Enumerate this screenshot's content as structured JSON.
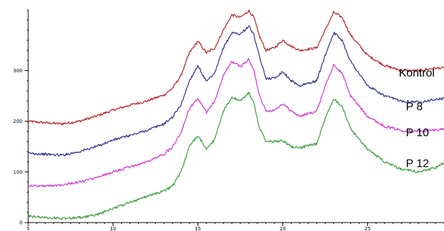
{
  "chart_data": {
    "type": "line",
    "title": "",
    "xlabel": "",
    "ylabel": "",
    "xlim": [
      5,
      29.5
    ],
    "ylim": [
      0,
      420
    ],
    "x_ticks": [
      5,
      10,
      15,
      20,
      25
    ],
    "y_ticks": [
      0,
      100,
      200,
      300
    ],
    "x_tick_labels": [
      "5",
      "10",
      "15",
      "20",
      "25"
    ],
    "y_tick_labels": [
      "0",
      "100",
      "200",
      "300"
    ],
    "grid": false,
    "legend": "inline-right",
    "series": [
      {
        "name": "Kontrol",
        "color": "#b22222",
        "x": [
          5,
          6,
          7,
          8,
          9,
          10,
          11,
          12,
          13,
          13.5,
          14,
          14.5,
          15,
          15.5,
          16,
          16.5,
          17,
          17.5,
          18,
          18.3,
          18.6,
          19,
          19.5,
          20,
          20.5,
          21,
          22,
          22.5,
          23,
          23.5,
          24,
          25,
          26,
          27,
          28,
          29,
          29.5
        ],
        "y": [
          200,
          197,
          195,
          200,
          210,
          222,
          232,
          240,
          252,
          265,
          290,
          335,
          358,
          335,
          345,
          380,
          410,
          405,
          418,
          405,
          370,
          340,
          345,
          360,
          348,
          340,
          345,
          380,
          415,
          405,
          370,
          330,
          310,
          300,
          300,
          305,
          305
        ]
      },
      {
        "name": "P 8",
        "color": "#2e2e8b",
        "x": [
          5,
          6,
          7,
          8,
          9,
          10,
          11,
          12,
          13,
          13.5,
          14,
          14.5,
          15,
          15.5,
          16,
          16.5,
          17,
          17.5,
          18,
          18.3,
          18.6,
          19,
          19.5,
          20,
          20.5,
          21,
          22,
          22.5,
          23,
          23.5,
          24,
          25,
          26,
          27,
          28,
          29,
          29.5
        ],
        "y": [
          137,
          135,
          133,
          140,
          150,
          163,
          172,
          182,
          195,
          208,
          232,
          280,
          310,
          278,
          295,
          345,
          375,
          372,
          388,
          370,
          330,
          285,
          285,
          298,
          280,
          270,
          280,
          330,
          375,
          360,
          318,
          270,
          250,
          240,
          238,
          243,
          245
        ]
      },
      {
        "name": "P 10",
        "color": "#cc33cc",
        "x": [
          5,
          6,
          7,
          8,
          9,
          10,
          11,
          12,
          13,
          13.5,
          14,
          14.5,
          15,
          15.5,
          16,
          16.5,
          17,
          17.5,
          18,
          18.3,
          18.6,
          19,
          19.5,
          20,
          20.5,
          21,
          22,
          22.5,
          23,
          23.5,
          24,
          25,
          26,
          27,
          28,
          29,
          29.5
        ],
        "y": [
          73,
          72,
          75,
          80,
          88,
          100,
          110,
          120,
          135,
          150,
          178,
          225,
          245,
          218,
          240,
          290,
          318,
          308,
          322,
          300,
          255,
          220,
          222,
          235,
          220,
          210,
          220,
          270,
          310,
          295,
          250,
          210,
          190,
          182,
          180,
          183,
          185
        ]
      },
      {
        "name": "P 12",
        "color": "#3a9b3a",
        "x": [
          5,
          6,
          7,
          8,
          9,
          10,
          11,
          12,
          13,
          13.5,
          14,
          14.5,
          15,
          15.5,
          16,
          16.5,
          17,
          17.5,
          18,
          18.3,
          18.6,
          19,
          19.5,
          20,
          20.5,
          21,
          22,
          22.5,
          23,
          23.5,
          24,
          25,
          26,
          27,
          28,
          29,
          29.5
        ],
        "y": [
          13,
          10,
          8,
          10,
          15,
          28,
          40,
          52,
          62,
          72,
          100,
          150,
          172,
          145,
          165,
          220,
          248,
          240,
          256,
          235,
          190,
          160,
          160,
          162,
          150,
          148,
          155,
          205,
          245,
          230,
          185,
          145,
          120,
          105,
          100,
          108,
          118
        ]
      }
    ]
  }
}
